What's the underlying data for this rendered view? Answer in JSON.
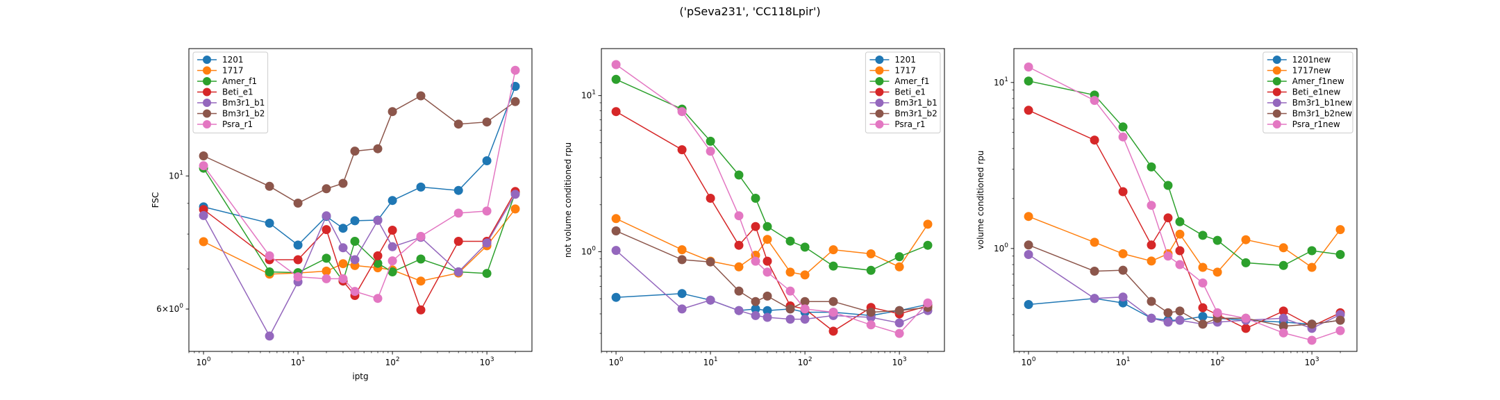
{
  "figure": {
    "suptitle": "('pSeva231', 'CC118Lpir')"
  },
  "chart_data": [
    {
      "type": "line",
      "xlabel": "iptg",
      "ylabel": "FSC",
      "xscale": "log",
      "yscale": "log",
      "xlim": [
        0.7,
        3000
      ],
      "ylim": [
        5.1,
        16.3
      ],
      "xticks": [
        {
          "v": 1,
          "b": "10",
          "e": "0"
        },
        {
          "v": 10,
          "b": "10",
          "e": "1"
        },
        {
          "v": 100,
          "b": "10",
          "e": "2"
        },
        {
          "v": 1000,
          "b": "10",
          "e": "3"
        }
      ],
      "yticks": [
        {
          "v": 6,
          "m": "6",
          "b": "10",
          "e": "0"
        },
        {
          "v": 10,
          "m": "",
          "b": "10",
          "e": "1"
        }
      ],
      "legend": "upper left",
      "x": [
        1,
        5,
        10,
        20,
        30,
        40,
        70,
        100,
        200,
        500,
        1000,
        2000
      ],
      "series": [
        {
          "name": "1201",
          "color": "#1f77b4",
          "values": [
            8.88,
            8.34,
            7.67,
            8.56,
            8.18,
            8.42,
            8.44,
            9.1,
            9.58,
            9.46,
            10.6,
            14.1
          ]
        },
        {
          "name": "1717",
          "color": "#ff7f0e",
          "values": [
            7.77,
            6.86,
            6.89,
            6.94,
            7.14,
            7.09,
            7.03,
            6.97,
            6.68,
            6.89,
            7.65,
            8.81
          ]
        },
        {
          "name": "Amer_f1",
          "color": "#2ca02c",
          "values": [
            10.3,
            6.92,
            6.9,
            7.29,
            6.68,
            7.78,
            7.15,
            6.92,
            7.27,
            6.92,
            6.88,
            9.38
          ]
        },
        {
          "name": "Beti_e1",
          "color": "#d62728",
          "values": [
            8.79,
            7.25,
            7.25,
            8.14,
            6.68,
            6.32,
            7.36,
            8.12,
            5.98,
            7.78,
            7.78,
            9.42
          ]
        },
        {
          "name": "Bm3r1_b1",
          "color": "#9467bd",
          "values": [
            8.59,
            5.41,
            6.66,
            8.58,
            7.59,
            7.25,
            8.43,
            7.62,
            7.9,
            6.92,
            7.73,
            9.32
          ]
        },
        {
          "name": "Bm3r1_b2",
          "color": "#8c564b",
          "values": [
            10.8,
            9.61,
            9.01,
            9.52,
            9.72,
            11.0,
            11.1,
            12.8,
            13.6,
            12.2,
            12.3,
            13.3
          ]
        },
        {
          "name": "Psra_r1",
          "color": "#e377c2",
          "values": [
            10.4,
            7.36,
            6.79,
            6.74,
            6.74,
            6.42,
            6.25,
            7.22,
            7.93,
            8.67,
            8.74,
            15.0
          ]
        }
      ]
    },
    {
      "type": "line",
      "xlabel": "",
      "ylabel": "not volume conditioned rpu",
      "xscale": "log",
      "yscale": "log",
      "xlim": [
        0.7,
        3000
      ],
      "ylim": [
        0.23,
        20
      ],
      "xticks": [
        {
          "v": 1,
          "b": "10",
          "e": "0"
        },
        {
          "v": 10,
          "b": "10",
          "e": "1"
        },
        {
          "v": 100,
          "b": "10",
          "e": "2"
        },
        {
          "v": 1000,
          "b": "10",
          "e": "3"
        }
      ],
      "yticks": [
        {
          "v": 1,
          "m": "",
          "b": "10",
          "e": "0"
        },
        {
          "v": 10,
          "m": "",
          "b": "10",
          "e": "1"
        }
      ],
      "legend": "upper right",
      "x": [
        1,
        5,
        10,
        20,
        30,
        40,
        70,
        100,
        200,
        500,
        1000,
        2000
      ],
      "series": [
        {
          "name": "1201",
          "color": "#1f77b4",
          "values": [
            0.51,
            0.54,
            0.49,
            0.42,
            0.43,
            0.42,
            0.43,
            0.41,
            0.41,
            0.39,
            0.42,
            0.46
          ]
        },
        {
          "name": "1717",
          "color": "#ff7f0e",
          "values": [
            1.63,
            1.03,
            0.87,
            0.8,
            0.95,
            1.2,
            0.74,
            0.71,
            1.03,
            0.97,
            0.8,
            1.5
          ]
        },
        {
          "name": "Amer_f1",
          "color": "#2ca02c",
          "values": [
            12.7,
            8.2,
            5.1,
            3.1,
            2.2,
            1.45,
            1.17,
            1.07,
            0.81,
            0.76,
            0.93,
            1.1
          ]
        },
        {
          "name": "Beti_e1",
          "color": "#d62728",
          "values": [
            7.9,
            4.5,
            2.2,
            1.1,
            1.45,
            0.87,
            0.45,
            0.43,
            0.31,
            0.44,
            0.4,
            0.45
          ]
        },
        {
          "name": "Bm3r1_b1",
          "color": "#9467bd",
          "values": [
            1.02,
            0.43,
            0.49,
            0.42,
            0.39,
            0.38,
            0.37,
            0.37,
            0.39,
            0.38,
            0.35,
            0.42
          ]
        },
        {
          "name": "Bm3r1_b2",
          "color": "#8c564b",
          "values": [
            1.36,
            0.89,
            0.86,
            0.56,
            0.48,
            0.52,
            0.43,
            0.48,
            0.48,
            0.41,
            0.42,
            0.44
          ]
        },
        {
          "name": "Psra_r1",
          "color": "#e377c2",
          "values": [
            15.8,
            7.9,
            4.4,
            1.7,
            0.87,
            0.74,
            0.56,
            0.43,
            0.41,
            0.34,
            0.3,
            0.47
          ]
        }
      ]
    },
    {
      "type": "line",
      "xlabel": "",
      "ylabel": "volume conditioned rpu",
      "xscale": "log",
      "yscale": "log",
      "xlim": [
        0.7,
        3000
      ],
      "ylim": [
        0.24,
        16
      ],
      "xticks": [
        {
          "v": 1,
          "b": "10",
          "e": "0"
        },
        {
          "v": 10,
          "b": "10",
          "e": "1"
        },
        {
          "v": 100,
          "b": "10",
          "e": "2"
        },
        {
          "v": 1000,
          "b": "10",
          "e": "3"
        }
      ],
      "yticks": [
        {
          "v": 1,
          "m": "",
          "b": "10",
          "e": "0"
        },
        {
          "v": 10,
          "m": "",
          "b": "10",
          "e": "1"
        }
      ],
      "legend": "upper right",
      "x": [
        1,
        5,
        10,
        20,
        30,
        40,
        70,
        100,
        200,
        500,
        1000,
        2000
      ],
      "series": [
        {
          "name": "1201new",
          "color": "#1f77b4",
          "values": [
            0.46,
            0.5,
            0.47,
            0.38,
            0.37,
            0.37,
            0.39,
            0.38,
            0.37,
            0.36,
            0.35,
            0.37
          ]
        },
        {
          "name": "1717new",
          "color": "#ff7f0e",
          "values": [
            1.56,
            1.09,
            0.93,
            0.84,
            0.93,
            1.22,
            0.77,
            0.72,
            1.13,
            1.01,
            0.77,
            1.3
          ]
        },
        {
          "name": "Amer_f1new",
          "color": "#2ca02c",
          "values": [
            10.2,
            8.4,
            5.4,
            3.1,
            2.4,
            1.45,
            1.2,
            1.12,
            0.82,
            0.79,
            0.97,
            0.92
          ]
        },
        {
          "name": "Beti_e1new",
          "color": "#d62728",
          "values": [
            6.8,
            4.5,
            2.2,
            1.05,
            1.53,
            0.97,
            0.44,
            0.4,
            0.33,
            0.42,
            0.34,
            0.41
          ]
        },
        {
          "name": "Bm3r1_b1new",
          "color": "#9467bd",
          "values": [
            0.92,
            0.5,
            0.51,
            0.38,
            0.36,
            0.37,
            0.35,
            0.36,
            0.37,
            0.38,
            0.33,
            0.4
          ]
        },
        {
          "name": "Bm3r1_b2new",
          "color": "#8c564b",
          "values": [
            1.05,
            0.73,
            0.74,
            0.48,
            0.41,
            0.42,
            0.35,
            0.38,
            0.38,
            0.34,
            0.35,
            0.37
          ]
        },
        {
          "name": "Psra_r1new",
          "color": "#e377c2",
          "values": [
            12.4,
            7.8,
            4.7,
            1.82,
            0.9,
            0.8,
            0.62,
            0.41,
            0.38,
            0.31,
            0.28,
            0.32
          ]
        }
      ]
    }
  ]
}
